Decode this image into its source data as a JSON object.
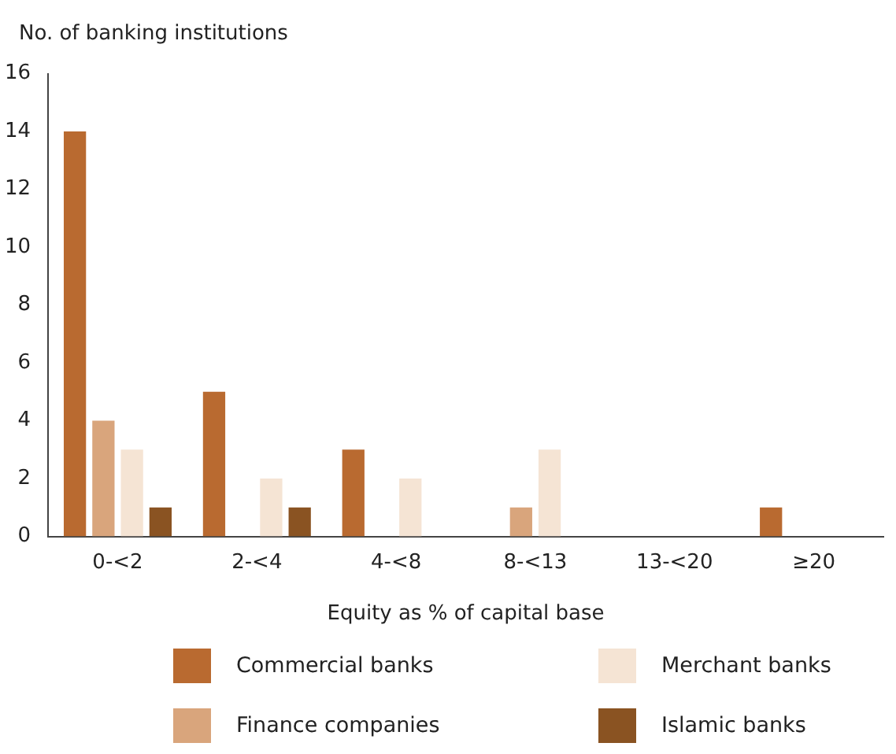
{
  "chart_data": {
    "type": "bar",
    "ylabel": "No. of banking institutions",
    "xlabel": "Equity as % of capital base",
    "categories": [
      "0-<2",
      "2-<4",
      "4-<8",
      "8-<13",
      "13-<20",
      "≥20"
    ],
    "series": [
      {
        "name": "Commercial banks",
        "color": "#b96a30",
        "values": [
          14,
          5,
          3,
          0,
          0,
          1
        ]
      },
      {
        "name": "Finance companies",
        "color": "#d9a57c",
        "values": [
          4,
          0,
          0,
          1,
          0,
          0
        ]
      },
      {
        "name": "Merchant banks",
        "color": "#f5e4d4",
        "values": [
          3,
          2,
          2,
          3,
          0,
          0
        ]
      },
      {
        "name": "Islamic banks",
        "color": "#8a5322",
        "values": [
          1,
          1,
          0,
          0,
          0,
          0
        ]
      }
    ],
    "ylim": [
      0,
      16
    ],
    "yticks": [
      0,
      2,
      4,
      6,
      8,
      10,
      12,
      14,
      16
    ],
    "grid": false,
    "legend": "bottom"
  }
}
